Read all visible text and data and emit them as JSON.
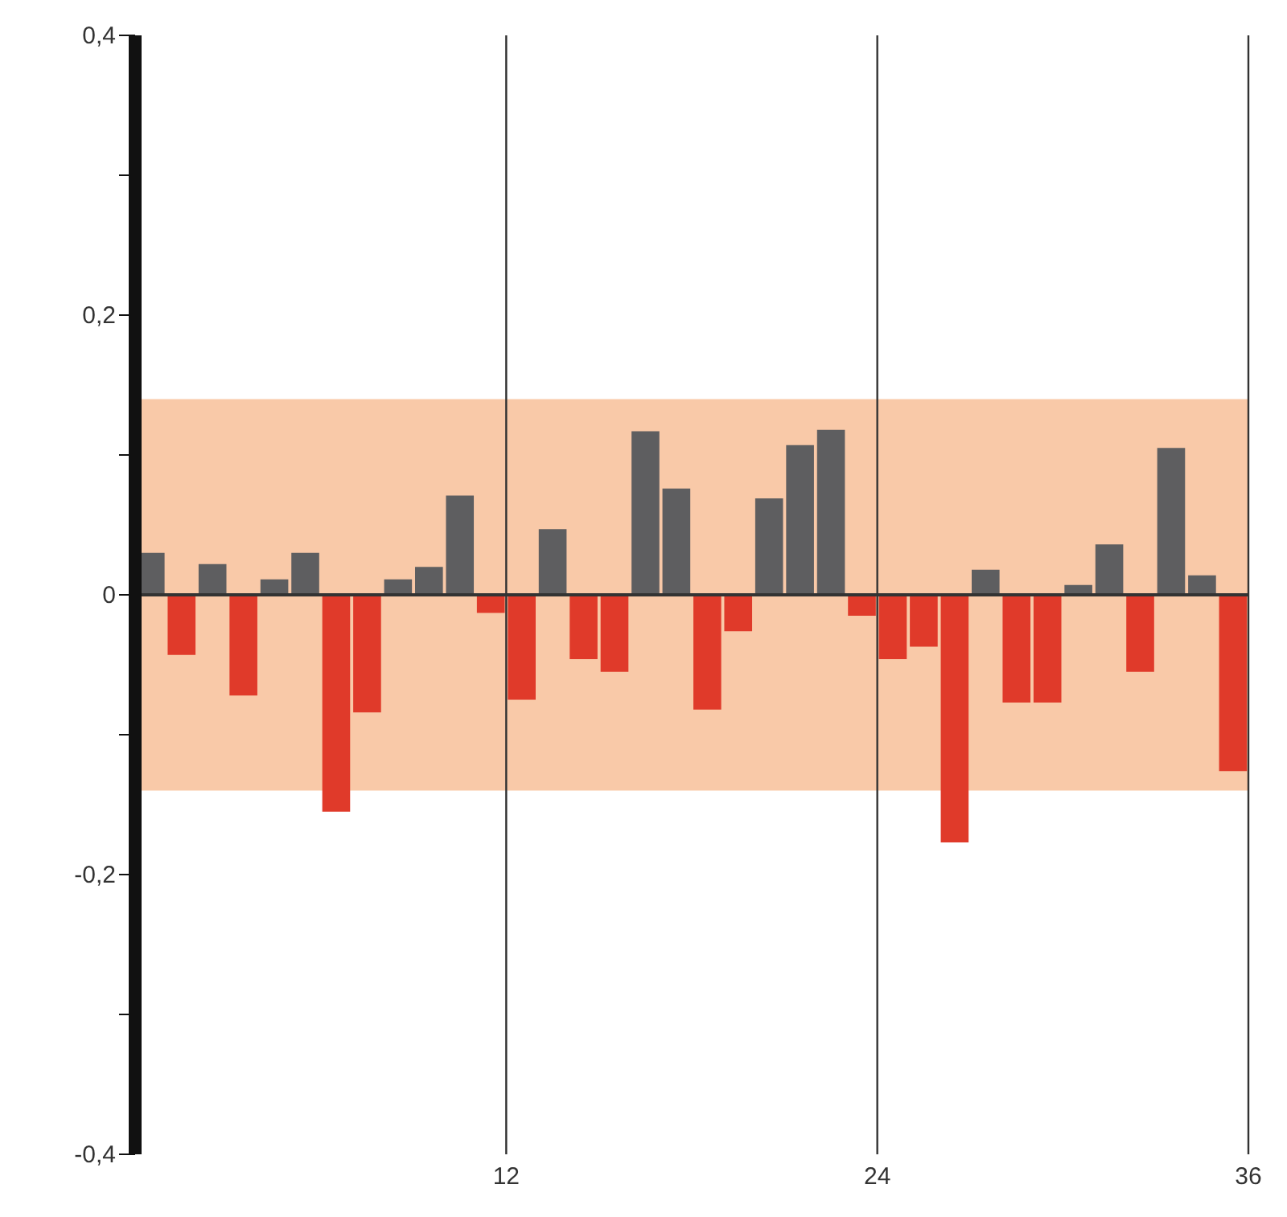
{
  "chart_data": {
    "type": "bar",
    "x": [
      0.5,
      1.5,
      2.5,
      3.5,
      4.5,
      5.5,
      6.5,
      7.5,
      8.5,
      9.5,
      10.5,
      11.5,
      12.5,
      13.5,
      14.5,
      15.5,
      16.5,
      17.5,
      18.5,
      19.5,
      20.5,
      21.5,
      22.5,
      23.5,
      24.5,
      25.5,
      26.5,
      27.5,
      28.5,
      29.5,
      30.5,
      31.5,
      32.5,
      33.5,
      34.5,
      35.5
    ],
    "values": [
      0.03,
      -0.043,
      0.022,
      -0.072,
      0.011,
      0.03,
      -0.155,
      -0.084,
      0.011,
      0.02,
      0.071,
      -0.013,
      -0.075,
      0.047,
      -0.046,
      -0.055,
      0.117,
      0.076,
      -0.082,
      -0.026,
      0.069,
      0.107,
      0.118,
      -0.015,
      -0.046,
      -0.037,
      -0.177,
      0.018,
      -0.077,
      -0.077,
      0.007,
      0.036,
      -0.055,
      0.105,
      0.014,
      -0.126
    ],
    "colors": [
      "#5e5e60",
      "#e03a2a",
      "#5e5e60",
      "#e03a2a",
      "#5e5e60",
      "#5e5e60",
      "#e03a2a",
      "#e03a2a",
      "#5e5e60",
      "#5e5e60",
      "#5e5e60",
      "#e03a2a",
      "#e03a2a",
      "#5e5e60",
      "#e03a2a",
      "#e03a2a",
      "#5e5e60",
      "#5e5e60",
      "#e03a2a",
      "#e03a2a",
      "#5e5e60",
      "#5e5e60",
      "#5e5e60",
      "#e03a2a",
      "#e03a2a",
      "#e03a2a",
      "#e03a2a",
      "#5e5e60",
      "#e03a2a",
      "#e03a2a",
      "#5e5e60",
      "#5e5e60",
      "#e03a2a",
      "#5e5e60",
      "#5e5e60",
      "#e03a2a"
    ],
    "xlim": [
      0,
      36
    ],
    "xticks": [
      {
        "value": 0,
        "label": null
      },
      12,
      24,
      36
    ],
    "ylim": [
      -0.4,
      0.4
    ],
    "yticks": [
      {
        "value": -0.4,
        "label": "-0,4"
      },
      {
        "value": -0.3,
        "label": null
      },
      {
        "value": -0.2,
        "label": "-0,2"
      },
      {
        "value": -0.1,
        "label": null
      },
      0,
      {
        "value": 0.1,
        "label": null
      },
      {
        "value": 0.2,
        "label": "0,2"
      },
      {
        "value": 0.3,
        "label": null
      },
      {
        "value": 0.4,
        "label": "0,4"
      }
    ],
    "bands": [
      {
        "axis": "y",
        "from": -0.14,
        "to": 0.14,
        "color": "#f9c9a8"
      }
    ],
    "ref_lines": [
      {
        "axis": "y",
        "value": 0,
        "color": "#333333"
      }
    ],
    "grid": "x"
  }
}
